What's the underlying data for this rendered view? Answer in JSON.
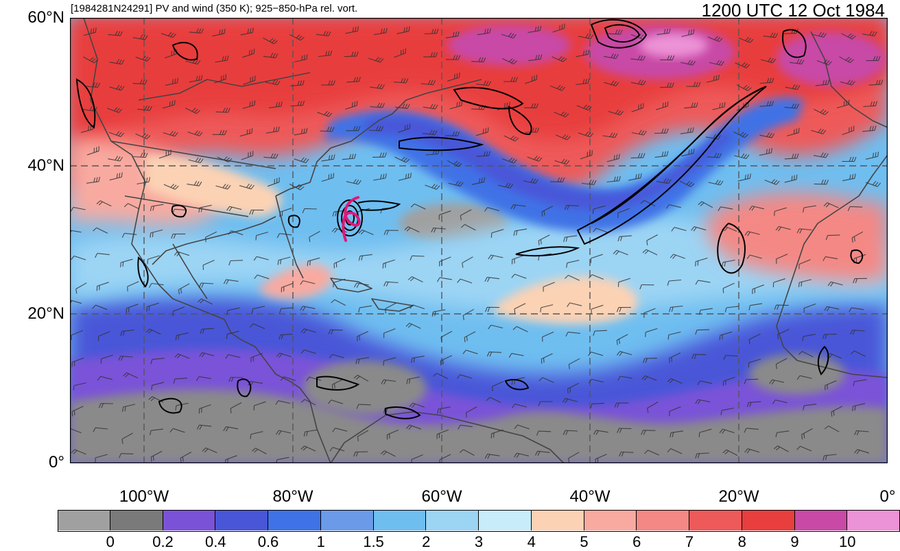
{
  "titles": {
    "left": "[1984281N24291] PV and wind (350 K); 925−850-hPa rel. vort.",
    "right": "1200 UTC 12 Oct 1984"
  },
  "lat_labels": [
    "60°N",
    "40°N",
    "20°N",
    "0°"
  ],
  "lon_labels": [
    "100°W",
    "80°W",
    "60°W",
    "40°W",
    "20°W",
    "0°"
  ],
  "colorbar": {
    "colors": [
      "#a0a0a0",
      "#7a7a7a",
      "#7a52d8",
      "#4a56d8",
      "#3f72e6",
      "#6a9ae8",
      "#6fbef0",
      "#9cd4f4",
      "#c8ecfa",
      "#fcd2b4",
      "#f8aaa0",
      "#f48884",
      "#ee5a5a",
      "#e83e3e",
      "#c84aa6",
      "#ec92d6"
    ],
    "labels": [
      "0",
      "0.2",
      "0.4",
      "0.6",
      "1",
      "1.5",
      "2",
      "3",
      "4",
      "5",
      "6",
      "7",
      "8",
      "9",
      "10"
    ]
  },
  "colors": {
    "gridline": "#555555",
    "coastline": "#444444",
    "vorticity_contour": "#000000",
    "storm_track": "#e0177a"
  }
}
